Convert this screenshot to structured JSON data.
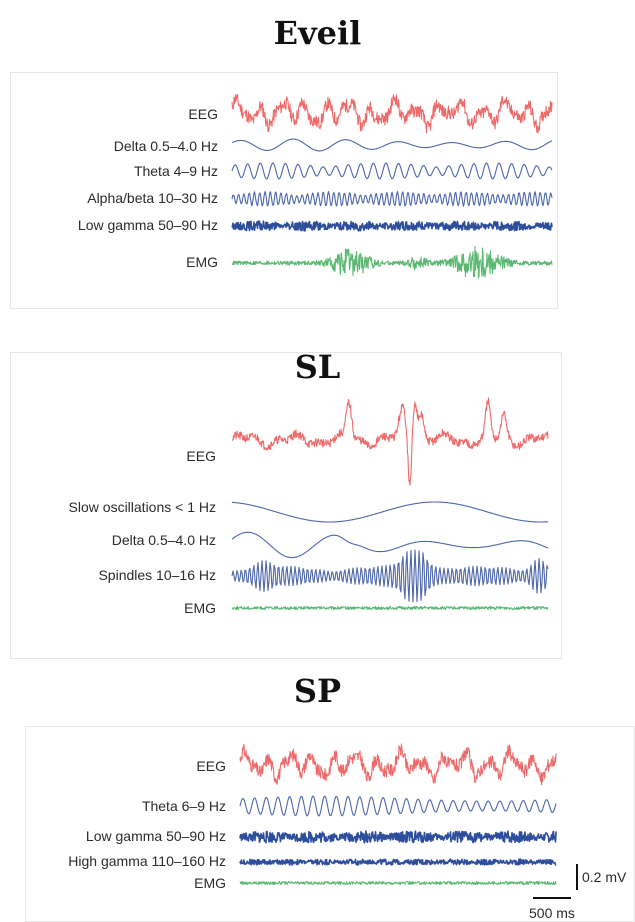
{
  "colors": {
    "eeg": "#ee6a6a",
    "band": "#4d67ad",
    "gamma": "#2c4e9c",
    "emg": "#5ab872",
    "text": "#2b2b2b",
    "scale": "#111111"
  },
  "panels": [
    {
      "id": "eveil",
      "title": "Eveil",
      "traces": [
        {
          "label": "EEG",
          "kind": "eeg",
          "icon": "eeg-trace-icon"
        },
        {
          "label": "Delta 0.5–4.0 Hz",
          "kind": "delta",
          "icon": "delta-band-trace-icon"
        },
        {
          "label": "Theta 4–9 Hz",
          "kind": "theta",
          "icon": "theta-band-trace-icon"
        },
        {
          "label": "Alpha/beta 10–30 Hz",
          "kind": "alphabeta",
          "icon": "alpha-beta-band-trace-icon"
        },
        {
          "label": "Low gamma 50–90 Hz",
          "kind": "lowgamma",
          "icon": "low-gamma-band-trace-icon"
        },
        {
          "label": "EMG",
          "kind": "emg_active",
          "icon": "emg-trace-icon"
        }
      ]
    },
    {
      "id": "sl",
      "title": "SL",
      "traces": [
        {
          "label": "EEG",
          "kind": "eeg_sws",
          "icon": "eeg-trace-icon"
        },
        {
          "label": "Slow oscillations < 1 Hz",
          "kind": "slow",
          "icon": "slow-oscillation-trace-icon"
        },
        {
          "label": "Delta 0.5–4.0 Hz",
          "kind": "delta_sws",
          "icon": "delta-band-trace-icon"
        },
        {
          "label": "Spindles 10–16 Hz",
          "kind": "spindles",
          "icon": "spindle-band-trace-icon"
        },
        {
          "label": "EMG",
          "kind": "emg_flat",
          "icon": "emg-trace-icon"
        }
      ]
    },
    {
      "id": "sp",
      "title": "SP",
      "traces": [
        {
          "label": "EEG",
          "kind": "eeg",
          "icon": "eeg-trace-icon"
        },
        {
          "label": "Theta 6–9 Hz",
          "kind": "theta_rem",
          "icon": "theta-band-trace-icon"
        },
        {
          "label": "Low gamma 50–90 Hz",
          "kind": "lowgamma",
          "icon": "low-gamma-band-trace-icon"
        },
        {
          "label": "High gamma 110–160 Hz",
          "kind": "highgamma",
          "icon": "high-gamma-band-trace-icon"
        },
        {
          "label": "EMG",
          "kind": "emg_flat",
          "icon": "emg-trace-icon"
        }
      ]
    }
  ],
  "scale_bar": {
    "voltage": "0.2 mV",
    "time": "500 ms"
  }
}
